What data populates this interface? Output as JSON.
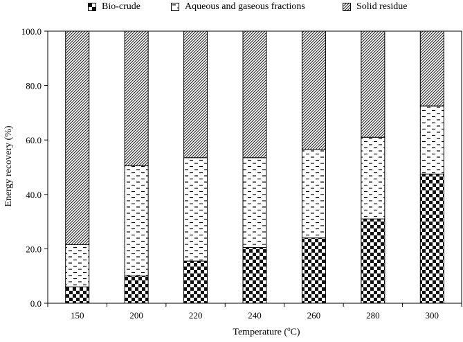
{
  "chart_data": {
    "type": "bar",
    "stacked": true,
    "title": "",
    "xlabel_text": "Temperature (",
    "xlabel_sup": "o",
    "xlabel_unit": "C)",
    "ylabel": "Energy recovery (%)",
    "ylim": [
      0,
      100
    ],
    "yticks": [
      "0.0",
      "20.0",
      "40.0",
      "60.0",
      "80.0",
      "100.0"
    ],
    "categories": [
      "150",
      "200",
      "220",
      "240",
      "260",
      "280",
      "300"
    ],
    "legend_position": "top",
    "series": [
      {
        "name": "Bio-crude",
        "pattern": "checker",
        "values": [
          6.0,
          10.0,
          15.5,
          20.5,
          24.0,
          31.0,
          47.5
        ]
      },
      {
        "name": "Aqueous and gaseous fractions",
        "pattern": "dashes",
        "values": [
          15.5,
          40.5,
          38.0,
          33.0,
          32.5,
          30.0,
          25.0
        ]
      },
      {
        "name": "Solid residue",
        "pattern": "hatch",
        "values": [
          78.5,
          49.5,
          46.5,
          46.5,
          43.5,
          39.0,
          27.5
        ]
      }
    ]
  }
}
